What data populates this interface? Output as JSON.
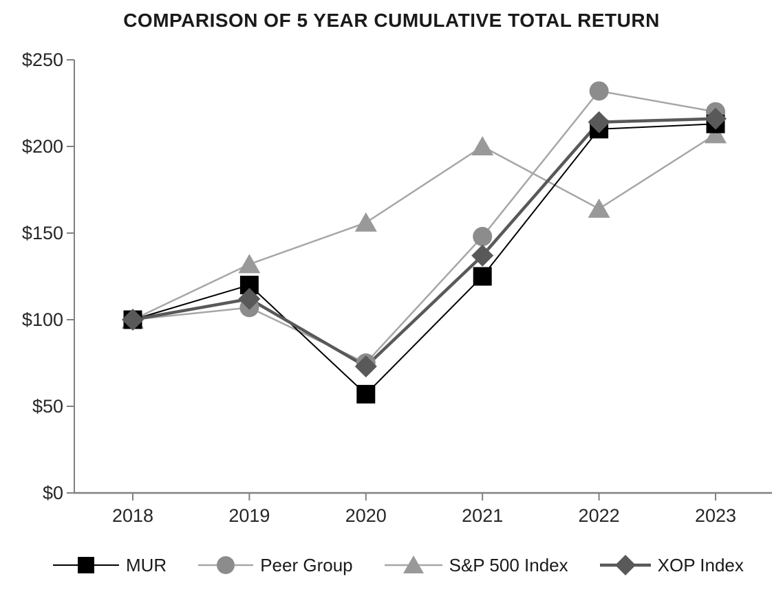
{
  "title": "COMPARISON OF 5 YEAR CUMULATIVE TOTAL RETURN",
  "colors": {
    "background": "#ffffff",
    "axis": "#808080",
    "tick_text": "#262626",
    "title_text": "#1a1a1a",
    "mur": "#000000",
    "peer_group": "#8c8c8c",
    "sp500": "#999999",
    "gray_line": "#a6a6a6",
    "xop": "#595959"
  },
  "chart_data": {
    "type": "line",
    "title": "COMPARISON OF 5 YEAR CUMULATIVE TOTAL RETURN",
    "x": [
      "2018",
      "2019",
      "2020",
      "2021",
      "2022",
      "2023"
    ],
    "series": [
      {
        "name": "MUR",
        "marker": "square",
        "marker_color": "#000000",
        "line_color": "#000000",
        "line_width": 2,
        "values": [
          100,
          120,
          57,
          125,
          210,
          213
        ]
      },
      {
        "name": "Peer Group",
        "marker": "circle",
        "marker_color": "#8c8c8c",
        "line_color": "#a6a6a6",
        "line_width": 2.5,
        "values": [
          100,
          107,
          75,
          148,
          232,
          220
        ]
      },
      {
        "name": "S&P 500 Index",
        "marker": "triangle",
        "marker_color": "#999999",
        "line_color": "#a6a6a6",
        "line_width": 2.5,
        "values": [
          100,
          132,
          156,
          200,
          164,
          207
        ]
      },
      {
        "name": "XOP Index",
        "marker": "diamond",
        "marker_color": "#595959",
        "line_color": "#595959",
        "line_width": 4.5,
        "values": [
          100,
          112,
          73,
          137,
          214,
          216
        ]
      }
    ],
    "ylim": [
      0,
      250
    ],
    "ytick_step": 50,
    "ytick_prefix": "$",
    "ytick_labels": [
      "$0",
      "$50",
      "$100",
      "$150",
      "$200",
      "$250"
    ],
    "xlabel": "",
    "ylabel": "",
    "grid": false,
    "legend_position": "bottom"
  }
}
